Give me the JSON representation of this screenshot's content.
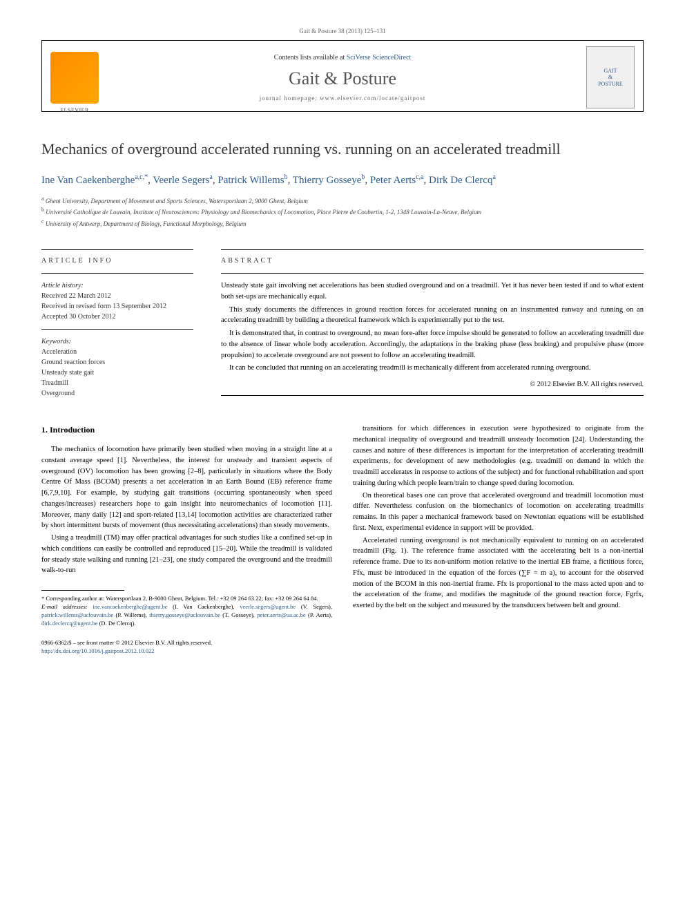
{
  "header": {
    "citation": "Gait & Posture 38 (2013) 125–131",
    "contents_line_prefix": "Contents lists available at ",
    "contents_line_link": "SciVerse ScienceDirect",
    "journal_name": "Gait & Posture",
    "homepage_prefix": "journal homepage: ",
    "homepage_url": "www.elsevier.com/locate/gaitpost",
    "logo_left_label": "ELSEVIER",
    "logo_right_lines": [
      "GAIT",
      "&",
      "POSTURE"
    ]
  },
  "title": "Mechanics of overground accelerated running vs. running on an accelerated treadmill",
  "authors": [
    {
      "name": "Ine Van Caekenberghe",
      "affil": "a,c,",
      "star": "*"
    },
    {
      "name": "Veerle Segers",
      "affil": "a",
      "star": ""
    },
    {
      "name": "Patrick Willems",
      "affil": "b",
      "star": ""
    },
    {
      "name": "Thierry Gosseye",
      "affil": "b",
      "star": ""
    },
    {
      "name": "Peter Aerts",
      "affil": "c,a",
      "star": ""
    },
    {
      "name": "Dirk De Clercq",
      "affil": "a",
      "star": ""
    }
  ],
  "affiliations": [
    {
      "sup": "a",
      "text": "Ghent University, Department of Movement and Sports Sciences, Watersportlaan 2, 9000 Ghent, Belgium"
    },
    {
      "sup": "b",
      "text": "Université Catholique de Louvain, Institute of Neurosciences: Physiology and Biomechanics of Locomotion, Place Pierre de Coubertin, 1-2, 1348 Louvain-La-Neuve, Belgium"
    },
    {
      "sup": "c",
      "text": "University of Antwerp, Department of Biology, Functional Morphology, Belgium"
    }
  ],
  "article_info": {
    "label": "ARTICLE INFO",
    "history_label": "Article history:",
    "history": [
      "Received 22 March 2012",
      "Received in revised form 13 September 2012",
      "Accepted 30 October 2012"
    ],
    "keywords_label": "Keywords:",
    "keywords": [
      "Acceleration",
      "Ground reaction forces",
      "Unsteady state gait",
      "Treadmill",
      "Overground"
    ]
  },
  "abstract": {
    "label": "ABSTRACT",
    "paragraphs": [
      "Unsteady state gait involving net accelerations has been studied overground and on a treadmill. Yet it has never been tested if and to what extent both set-ups are mechanically equal.",
      "This study documents the differences in ground reaction forces for accelerated running on an instrumented runway and running on an accelerating treadmill by building a theoretical framework which is experimentally put to the test.",
      "It is demonstrated that, in contrast to overground, no mean fore-after force impulse should be generated to follow an accelerating treadmill due to the absence of linear whole body acceleration. Accordingly, the adaptations in the braking phase (less braking) and propulsive phase (more propulsion) to accelerate overground are not present to follow an accelerating treadmill.",
      "It can be concluded that running on an accelerating treadmill is mechanically different from accelerated running overground."
    ],
    "copyright": "© 2012 Elsevier B.V. All rights reserved."
  },
  "body": {
    "section_heading": "1. Introduction",
    "col1": [
      "The mechanics of locomotion have primarily been studied when moving in a straight line at a constant average speed [1]. Nevertheless, the interest for unsteady and transient aspects of overground (OV) locomotion has been growing [2–8], particularly in situations where the Body Centre Of Mass (BCOM) presents a net acceleration in an Earth Bound (EB) reference frame [6,7,9,10]. For example, by studying gait transitions (occurring spontaneously when speed changes/increases) researchers hope to gain insight into neuromechanics of locomotion [11]. Moreover, many daily [12] and sport-related [13,14] locomotion activities are characterized rather by short intermittent bursts of movement (thus necessitating accelerations) than steady movements.",
      "Using a treadmill (TM) may offer practical advantages for such studies like a confined set-up in which conditions can easily be controlled and reproduced [15–20]. While the treadmill is validated for steady state walking and running [21–23], one study compared the overground and the treadmill walk-to-run"
    ],
    "col2": [
      "transitions for which differences in execution were hypothesized to originate from the mechanical inequality of overground and treadmill unsteady locomotion [24]. Understanding the causes and nature of these differences is important for the interpretation of accelerating treadmill experiments, for development of new methodologies (e.g. treadmill on demand in which the treadmill accelerates in response to actions of the subject) and for functional rehabilitation and sport training during which people learn/train to change speed during locomotion.",
      "On theoretical bases one can prove that accelerated overground and treadmill locomotion must differ. Nevertheless confusion on the biomechanics of locomotion on accelerating treadmills remains. In this paper a mechanical framework based on Newtonian equations will be established first. Next, experimental evidence in support will be provided.",
      "Accelerated running overground is not mechanically equivalent to running on an accelerated treadmill (Fig. 1). The reference frame associated with the accelerating belt is a non-inertial reference frame. Due to its non-uniform motion relative to the inertial EB frame, a fictitious force, Ffx, must be introduced in the equation of the forces (∑F = m a), to account for the observed motion of the BCOM in this non-inertial frame. Ffx is proportional to the mass acted upon and to the acceleration of the frame, and modifies the magnitude of the ground reaction force, Fgrfx, exerted by the belt on the subject and measured by the transducers between belt and ground."
    ]
  },
  "footnotes": {
    "corresponding": "* Corresponding author at: Watersportlaan 2, B-9000 Ghent, Belgium. Tel.: +32 09 264 63 22; fax: +32 09 264 64 84.",
    "email_label": "E-mail addresses:",
    "emails": [
      {
        "addr": "ine.vancaekenberghe@ugent.be",
        "who": "(I. Van Caekenberghe)"
      },
      {
        "addr": "veerle.segers@ugent.be",
        "who": "(V. Segers)"
      },
      {
        "addr": "patrick.willems@uclouvain.be",
        "who": "(P. Willems)"
      },
      {
        "addr": "thierry.gosseye@uclouvain.be",
        "who": "(T. Gosseye)"
      },
      {
        "addr": "peter.aerts@ua.ac.be",
        "who": "(P. Aerts)"
      },
      {
        "addr": "dirk.declercq@ugent.be",
        "who": "(D. De Clercq)"
      }
    ]
  },
  "bottom": {
    "issn_line": "0966-6362/$ – see front matter © 2012 Elsevier B.V. All rights reserved.",
    "doi": "http://dx.doi.org/10.1016/j.gaitpost.2012.10.022"
  },
  "colors": {
    "link": "#2a5a8a",
    "text": "#000000",
    "muted": "#666666",
    "elsevier_orange": "#ff8c00"
  }
}
